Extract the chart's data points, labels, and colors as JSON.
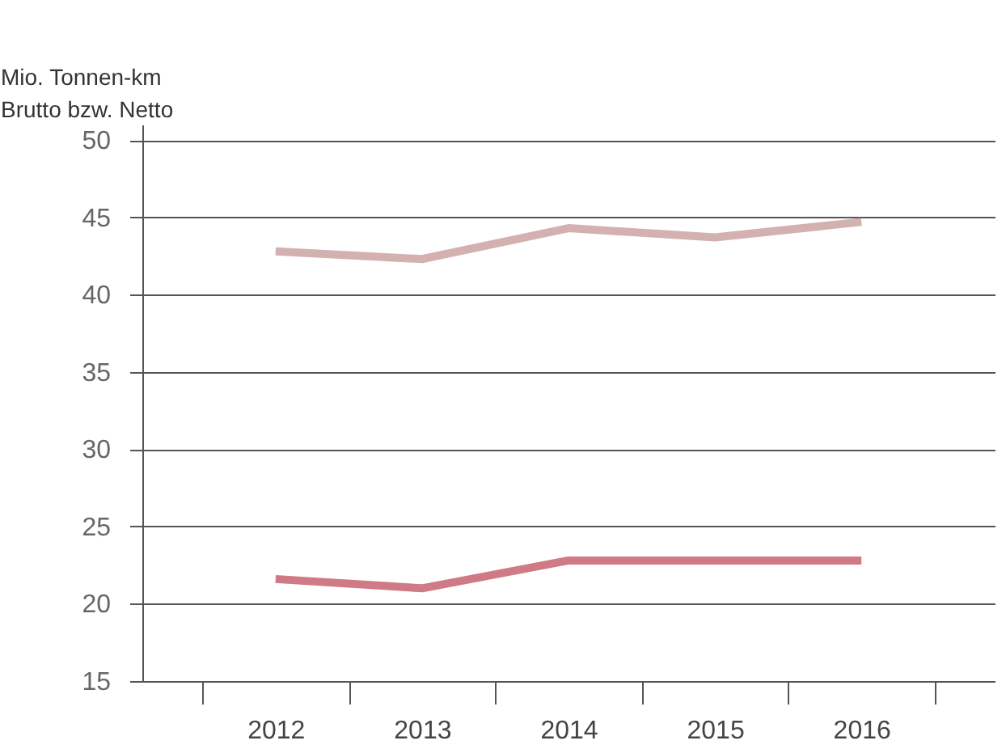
{
  "chart_data": {
    "type": "line",
    "ylabel": "Mio. Tonnen-km\nBrutto bzw. Netto",
    "categories": [
      "2012",
      "2013",
      "2014",
      "2015",
      "2016"
    ],
    "series": [
      {
        "color": "#d4b1b1",
        "values": [
          42.8,
          42.3,
          44.3,
          43.7,
          44.7
        ]
      },
      {
        "color": "#d07a85",
        "values": [
          21.6,
          21.0,
          22.8,
          22.8,
          22.8
        ]
      }
    ],
    "ylim": [
      15,
      51
    ],
    "yticks": [
      15,
      20,
      25,
      30,
      35,
      40,
      45,
      50
    ],
    "grid": "y"
  }
}
